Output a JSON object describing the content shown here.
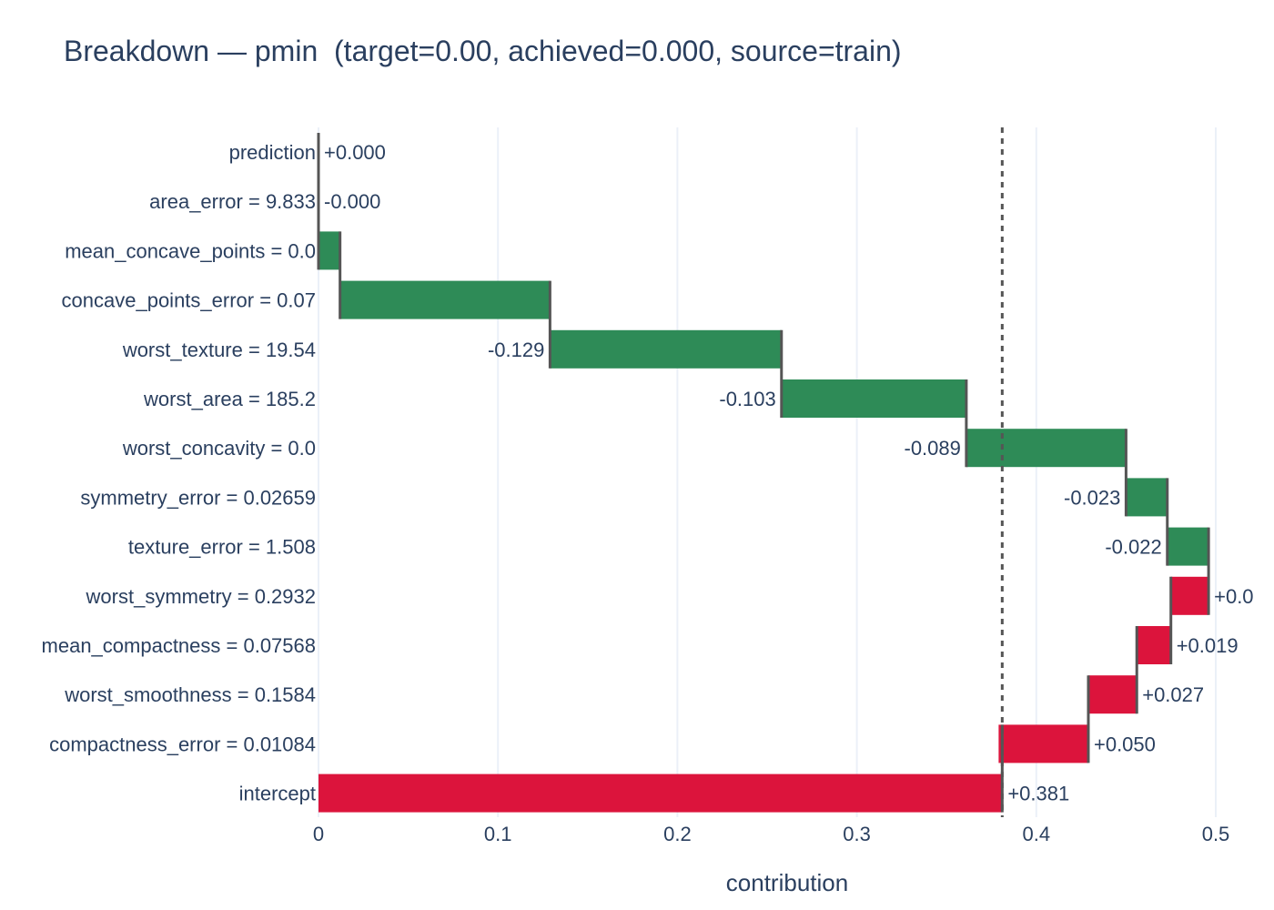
{
  "chart_data": {
    "type": "waterfall",
    "title": "Breakdown — pmin  (target=0.00, achieved=0.000, source=train)",
    "xlabel": "contribution",
    "ylabel": "",
    "xlim": [
      0,
      0.5
    ],
    "xticks": [
      0,
      0.1,
      0.2,
      0.3,
      0.4,
      0.5
    ],
    "xtick_labels": [
      "0",
      "0.1",
      "0.2",
      "0.3",
      "0.4",
      "0.5"
    ],
    "grid": true,
    "reference_line": 0.381,
    "rows": [
      {
        "label": "prediction",
        "value": 0.0,
        "value_label": "+0.000",
        "start": 0.0,
        "end": 0.0,
        "kind": "total"
      },
      {
        "label": "area_error = 9.833",
        "value": -0.0,
        "value_label": "-0.000",
        "start": 0.0,
        "end": 0.0,
        "kind": "negative"
      },
      {
        "label": "mean_concave_points = 0.0",
        "value": -0.012,
        "value_label": "",
        "start": 0.012,
        "end": 0.0,
        "kind": "negative"
      },
      {
        "label": "concave_points_error = 0.07",
        "value": -0.117,
        "value_label": "",
        "start": 0.129,
        "end": 0.012,
        "kind": "negative"
      },
      {
        "label": "worst_texture = 19.54",
        "value": -0.129,
        "value_label": "-0.129",
        "start": 0.258,
        "end": 0.129,
        "kind": "negative"
      },
      {
        "label": "worst_area = 185.2",
        "value": -0.103,
        "value_label": "-0.103",
        "start": 0.361,
        "end": 0.258,
        "kind": "negative"
      },
      {
        "label": "worst_concavity = 0.0",
        "value": -0.089,
        "value_label": "-0.089",
        "start": 0.45,
        "end": 0.361,
        "kind": "negative"
      },
      {
        "label": "symmetry_error = 0.02659",
        "value": -0.023,
        "value_label": "-0.023",
        "start": 0.473,
        "end": 0.45,
        "kind": "negative"
      },
      {
        "label": "texture_error = 1.508",
        "value": -0.022,
        "value_label": "-0.022",
        "start": 0.496,
        "end": 0.473,
        "kind": "negative"
      },
      {
        "label": "worst_symmetry = 0.2932",
        "value": 0.021,
        "value_label": "+0.0",
        "start": 0.475,
        "end": 0.496,
        "kind": "positive"
      },
      {
        "label": "mean_compactness = 0.07568",
        "value": 0.019,
        "value_label": "+0.019",
        "start": 0.456,
        "end": 0.475,
        "kind": "positive"
      },
      {
        "label": "worst_smoothness = 0.1584",
        "value": 0.027,
        "value_label": "+0.027",
        "start": 0.429,
        "end": 0.456,
        "kind": "positive"
      },
      {
        "label": "compactness_error = 0.01084",
        "value": 0.05,
        "value_label": "+0.050",
        "start": 0.379,
        "end": 0.429,
        "kind": "positive"
      },
      {
        "label": "intercept",
        "value": 0.381,
        "value_label": "+0.381",
        "start": 0.0,
        "end": 0.381,
        "kind": "positive"
      }
    ]
  },
  "colors": {
    "positive": "#dc143c",
    "negative": "#2e8b57",
    "connector": "#555555",
    "reference_line": "#555555",
    "grid": "#ebf0f8",
    "text": "#2a3f5f"
  }
}
